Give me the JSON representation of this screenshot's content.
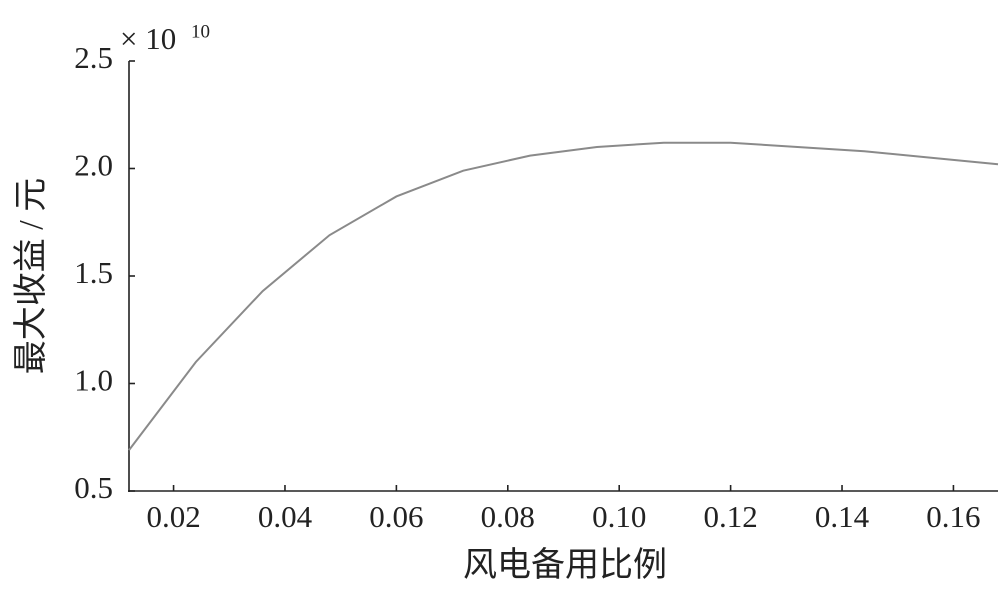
{
  "chart_data": {
    "type": "line",
    "xlabel": "风电备用比例",
    "ylabel": "最大收益 / 元",
    "y_multiplier": {
      "base": "× 10",
      "exponent": "10"
    },
    "x": [
      0.012,
      0.024,
      0.036,
      0.048,
      0.06,
      0.072,
      0.084,
      0.096,
      0.108,
      0.12,
      0.132,
      0.144,
      0.156,
      0.168
    ],
    "series": [
      {
        "color": "#8a8a8a",
        "values": [
          0.69,
          1.1,
          1.43,
          1.69,
          1.87,
          1.99,
          2.06,
          2.1,
          2.12,
          2.12,
          2.1,
          2.08,
          2.05,
          2.02
        ]
      }
    ],
    "xlim": [
      0.012,
      0.168
    ],
    "xticks": [
      0.02,
      0.04,
      0.06,
      0.08,
      {
        "value": 0.1,
        "label": "0.10"
      },
      {
        "value": 0.12,
        "label": "0.12"
      },
      {
        "value": 0.14,
        "label": "0.14"
      },
      {
        "value": 0.16,
        "label": "0.16"
      }
    ],
    "ylim": [
      0.5,
      2.5
    ],
    "yticks": [
      0.5,
      {
        "value": 1,
        "label": "1.0"
      },
      1.5,
      {
        "value": 2,
        "label": "2.0"
      },
      2.5
    ],
    "grid": false
  }
}
